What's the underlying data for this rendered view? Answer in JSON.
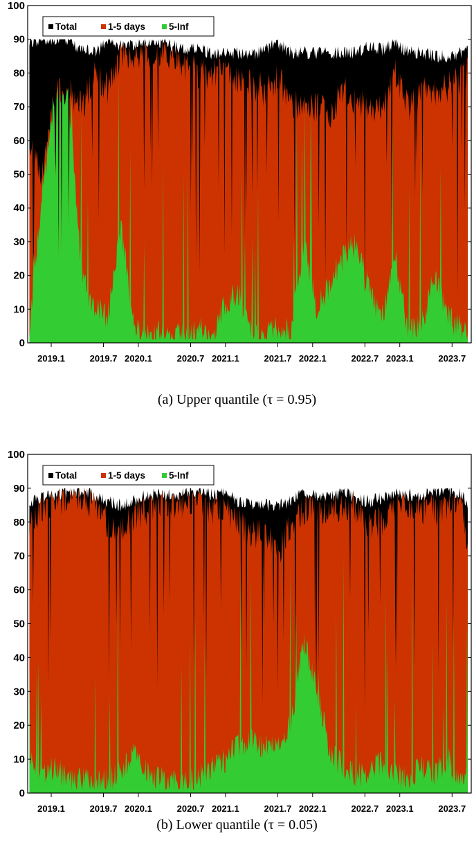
{
  "chart_data": [
    {
      "type": "area",
      "caption": "(a) Upper quantile (τ = 0.95)",
      "legend": [
        "Total",
        "1-5 days",
        "5-Inf"
      ],
      "legend_position": "top-left",
      "colors": [
        "#000000",
        "#cc3300",
        "#33cc33"
      ],
      "yticks": [
        "0",
        "10",
        "20",
        "30",
        "40",
        "50",
        "60",
        "70",
        "80",
        "90",
        "100"
      ],
      "xticks": [
        "2019.1",
        "2019.7",
        "2020.1",
        "2020.7",
        "2021.1",
        "2021.7",
        "2022.1",
        "2022.7",
        "2023.1",
        "2023.7"
      ],
      "xlim": [
        2018.83,
        2023.92
      ],
      "ylim": [
        0,
        100
      ],
      "x": [
        2018.85,
        2019.0,
        2019.15,
        2019.3,
        2019.45,
        2019.6,
        2019.75,
        2019.9,
        2020.05,
        2020.2,
        2020.35,
        2020.5,
        2020.65,
        2020.8,
        2020.95,
        2021.1,
        2021.25,
        2021.4,
        2021.55,
        2021.7,
        2021.85,
        2022.0,
        2022.15,
        2022.3,
        2022.45,
        2022.6,
        2022.75,
        2022.9,
        2023.05,
        2023.2,
        2023.35,
        2023.5,
        2023.65,
        2023.8,
        2023.88
      ],
      "series": [
        {
          "name": "Total",
          "values": [
            89,
            90,
            90,
            90,
            87,
            86,
            89,
            88,
            88,
            89,
            89,
            88,
            87,
            87,
            86,
            86,
            86,
            85,
            87,
            89,
            86,
            86,
            86,
            86,
            86,
            86,
            88,
            87,
            89,
            86,
            86,
            85,
            85,
            86,
            89
          ]
        },
        {
          "name": "1-5 days",
          "values": [
            60,
            50,
            76,
            75,
            70,
            80,
            75,
            86,
            85,
            84,
            86,
            85,
            82,
            80,
            80,
            80,
            78,
            76,
            75,
            78,
            72,
            68,
            70,
            68,
            75,
            72,
            70,
            70,
            80,
            70,
            75,
            74,
            76,
            78,
            80
          ]
        },
        {
          "name": "5-Inf",
          "values": [
            5,
            45,
            75,
            74,
            20,
            10,
            8,
            35,
            5,
            2,
            3,
            3,
            2,
            4,
            2,
            12,
            15,
            3,
            2,
            5,
            3,
            30,
            10,
            18,
            25,
            30,
            15,
            8,
            25,
            3,
            5,
            20,
            8,
            4,
            3
          ]
        }
      ]
    },
    {
      "type": "area",
      "caption": "(b) Lower quantile (τ = 0.05)",
      "legend": [
        "Total",
        "1-5 days",
        "5-Inf"
      ],
      "legend_position": "top-left",
      "colors": [
        "#000000",
        "#cc3300",
        "#33cc33"
      ],
      "yticks": [
        "0",
        "10",
        "20",
        "30",
        "40",
        "50",
        "60",
        "70",
        "80",
        "90",
        "100"
      ],
      "xticks": [
        "2019.1",
        "2019.7",
        "2020.1",
        "2020.7",
        "2021.1",
        "2021.7",
        "2022.1",
        "2022.7",
        "2023.1",
        "2023.7"
      ],
      "xlim": [
        2018.83,
        2023.92
      ],
      "ylim": [
        0,
        100
      ],
      "x": [
        2018.85,
        2019.0,
        2019.15,
        2019.3,
        2019.45,
        2019.6,
        2019.75,
        2019.9,
        2020.05,
        2020.2,
        2020.35,
        2020.5,
        2020.65,
        2020.8,
        2020.95,
        2021.1,
        2021.25,
        2021.4,
        2021.55,
        2021.7,
        2021.85,
        2022.0,
        2022.15,
        2022.3,
        2022.45,
        2022.6,
        2022.75,
        2022.9,
        2023.05,
        2023.2,
        2023.35,
        2023.5,
        2023.65,
        2023.8,
        2023.88
      ],
      "series": [
        {
          "name": "Total",
          "values": [
            86,
            87,
            88,
            89,
            89,
            88,
            86,
            85,
            86,
            88,
            88,
            88,
            89,
            89,
            88,
            89,
            86,
            85,
            85,
            85,
            86,
            89,
            88,
            87,
            89,
            87,
            86,
            87,
            89,
            88,
            88,
            89,
            89,
            89,
            85
          ]
        },
        {
          "name": "1-5 days",
          "values": [
            80,
            84,
            86,
            88,
            87,
            86,
            80,
            78,
            82,
            84,
            85,
            86,
            86,
            86,
            84,
            84,
            80,
            76,
            78,
            70,
            80,
            84,
            84,
            82,
            86,
            84,
            80,
            80,
            86,
            84,
            84,
            84,
            84,
            86,
            73
          ]
        },
        {
          "name": "5-Inf",
          "values": [
            12,
            5,
            8,
            3,
            4,
            3,
            4,
            6,
            12,
            6,
            4,
            3,
            3,
            5,
            8,
            10,
            14,
            15,
            14,
            15,
            20,
            45,
            30,
            12,
            8,
            5,
            7,
            9,
            5,
            4,
            8,
            6,
            10,
            3,
            10
          ]
        }
      ]
    }
  ]
}
